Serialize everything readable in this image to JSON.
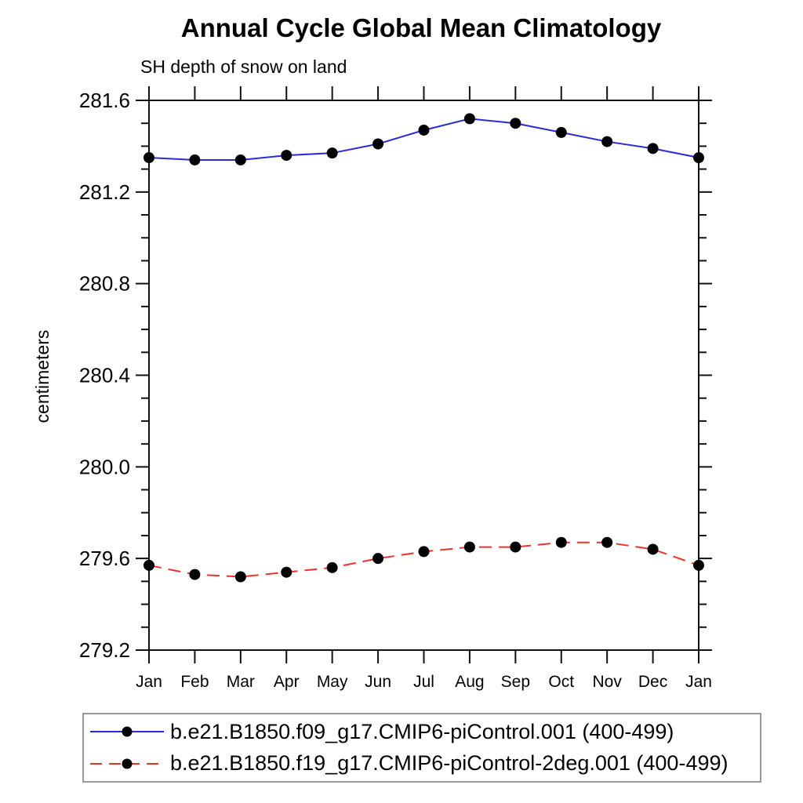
{
  "page": {
    "background": "#ffffff",
    "frame_color": "#111111",
    "text_color": "#000000"
  },
  "legend": {
    "border_color": "#999999",
    "marker_color": "#000000"
  },
  "chart_data": {
    "type": "line",
    "title": "Annual Cycle Global Mean Climatology",
    "subtitle": "SH depth of snow on land",
    "ylabel": "centimeters",
    "xlabel": "",
    "categories": [
      "Jan",
      "Feb",
      "Mar",
      "Apr",
      "May",
      "Jun",
      "Jul",
      "Aug",
      "Sep",
      "Oct",
      "Nov",
      "Dec",
      "Jan"
    ],
    "ylim": [
      279.2,
      281.6
    ],
    "y_major_step": 0.4,
    "y_minor_step": 0.1,
    "y_tick_labels": [
      "279.2",
      "279.6",
      "280.0",
      "280.4",
      "280.8",
      "281.2",
      "281.6"
    ],
    "grid": false,
    "legend_position": "bottom",
    "marker": "filled-circle",
    "marker_color": "#000000",
    "series": [
      {
        "name": "b.e21.B1850.f09_g17.CMIP6-piControl.001 (400-499)",
        "color": "#2b2bd5",
        "line_style": "solid",
        "values": [
          281.35,
          281.34,
          281.34,
          281.36,
          281.37,
          281.41,
          281.47,
          281.52,
          281.5,
          281.46,
          281.42,
          281.39,
          281.35
        ]
      },
      {
        "name": "b.e21.B1850.f19_g17.CMIP6-piControl-2deg.001 (400-499)",
        "color": "#f03030",
        "line_style": "dashed",
        "values": [
          279.57,
          279.53,
          279.52,
          279.54,
          279.56,
          279.6,
          279.63,
          279.65,
          279.65,
          279.67,
          279.67,
          279.64,
          279.57
        ]
      }
    ]
  }
}
